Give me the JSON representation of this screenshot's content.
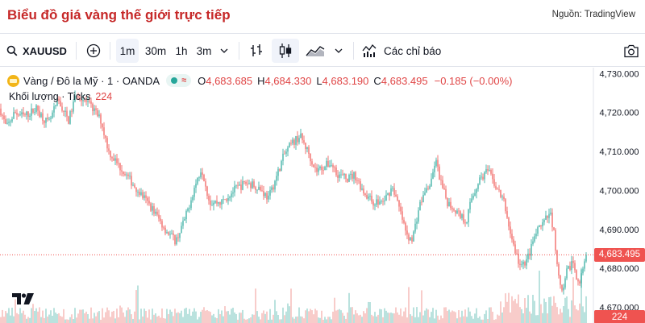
{
  "header": {
    "title": "Biểu đồ giá vàng thế giới trực tiếp",
    "source": "Nguồn: TradingView"
  },
  "toolbar": {
    "symbol": "XAUUSD",
    "intervals": [
      "1m",
      "30m",
      "1h",
      "3m"
    ],
    "selected_interval": "1m",
    "indicators_label": "Các chỉ báo",
    "icons": [
      "search-icon",
      "add-symbol-icon",
      "chevron-down-icon",
      "bar-style-icon",
      "candle-style-icon",
      "area-style-icon",
      "indicators-icon",
      "camera-icon"
    ]
  },
  "legend": {
    "instrument": "Vàng / Đô la Mỹ · 1 · OANDA",
    "o_label": "O",
    "o": "4,683.685",
    "h_label": "H",
    "h": "4,684.330",
    "l_label": "L",
    "l": "4,683.190",
    "c_label": "C",
    "c": "4,683.495",
    "change": "−0.185 (−0.00%)",
    "volume_label": "Khối lượng · Ticks",
    "volume": "224"
  },
  "colors": {
    "up": "#26a69a",
    "down": "#ef5350",
    "volume_up": "#b2dfdb",
    "volume_down": "#f7c6c5",
    "title": "#c62828"
  },
  "chart_data": {
    "type": "candlestick",
    "y_ticks": [
      "4,730.000",
      "4,720.000",
      "4,710.000",
      "4,700.000",
      "4,690.000",
      "4,680.000",
      "4,670.000"
    ],
    "ylim": [
      4666,
      4731.5
    ],
    "last_price": "4,683.495",
    "last_volume": "224",
    "path": [
      [
        0,
        4721
      ],
      [
        8,
        4716
      ],
      [
        18,
        4720
      ],
      [
        30,
        4719
      ],
      [
        45,
        4721
      ],
      [
        60,
        4717
      ],
      [
        72,
        4723
      ],
      [
        85,
        4718
      ],
      [
        95,
        4725
      ],
      [
        105,
        4723
      ],
      [
        115,
        4721
      ],
      [
        125,
        4718
      ],
      [
        135,
        4710
      ],
      [
        145,
        4707
      ],
      [
        160,
        4703
      ],
      [
        175,
        4699
      ],
      [
        190,
        4695
      ],
      [
        205,
        4690
      ],
      [
        218,
        4687
      ],
      [
        230,
        4693
      ],
      [
        240,
        4700
      ],
      [
        250,
        4706
      ],
      [
        260,
        4697
      ],
      [
        275,
        4697
      ],
      [
        290,
        4700
      ],
      [
        305,
        4702
      ],
      [
        320,
        4701
      ],
      [
        333,
        4698
      ],
      [
        342,
        4703
      ],
      [
        352,
        4709
      ],
      [
        362,
        4712
      ],
      [
        372,
        4714
      ],
      [
        382,
        4710
      ],
      [
        392,
        4705
      ],
      [
        400,
        4706
      ],
      [
        410,
        4707
      ],
      [
        420,
        4704
      ],
      [
        430,
        4703
      ],
      [
        440,
        4704
      ],
      [
        450,
        4700
      ],
      [
        462,
        4697
      ],
      [
        475,
        4697
      ],
      [
        487,
        4701
      ],
      [
        497,
        4694
      ],
      [
        505,
        4688
      ],
      [
        512,
        4688
      ],
      [
        520,
        4696
      ],
      [
        528,
        4700
      ],
      [
        535,
        4702
      ],
      [
        540,
        4708
      ],
      [
        548,
        4701
      ],
      [
        555,
        4697
      ],
      [
        565,
        4695
      ],
      [
        578,
        4692
      ],
      [
        585,
        4698
      ],
      [
        595,
        4703
      ],
      [
        605,
        4705
      ],
      [
        615,
        4701
      ],
      [
        625,
        4697
      ],
      [
        632,
        4690
      ],
      [
        638,
        4685
      ],
      [
        646,
        4680
      ],
      [
        655,
        4683
      ],
      [
        665,
        4689
      ],
      [
        675,
        4692
      ],
      [
        683,
        4694
      ],
      [
        688,
        4688
      ],
      [
        692,
        4678
      ],
      [
        698,
        4673
      ],
      [
        703,
        4679
      ],
      [
        710,
        4682
      ],
      [
        718,
        4676
      ],
      [
        724,
        4680
      ],
      [
        728,
        4683.5
      ]
    ]
  }
}
